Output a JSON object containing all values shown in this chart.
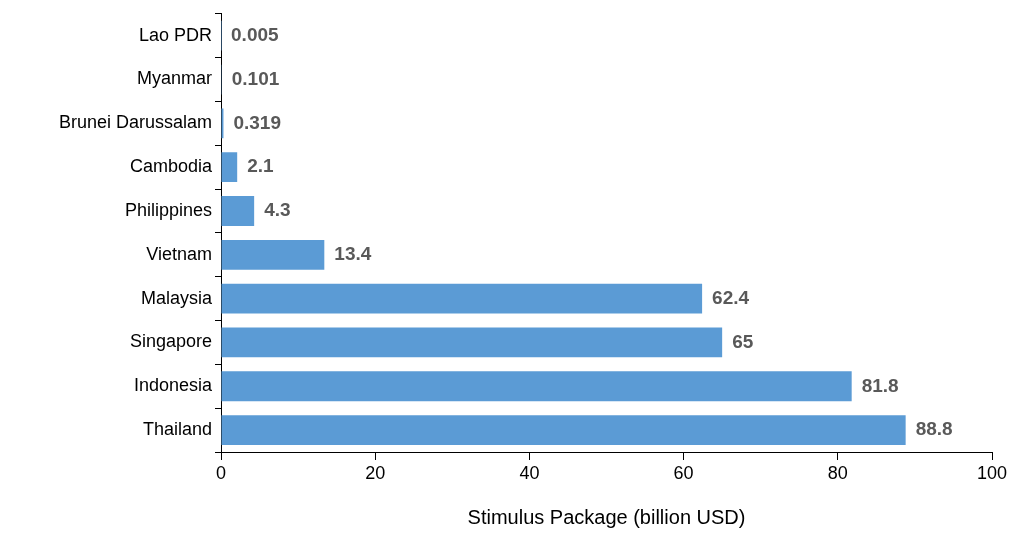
{
  "chart_data": {
    "type": "bar",
    "orientation": "horizontal",
    "xlabel": "Stimulus Package (billion USD)",
    "categories": [
      "Lao PDR",
      "Myanmar",
      "Brunei Darussalam",
      "Cambodia",
      "Philippines",
      "Vietnam",
      "Malaysia",
      "Singapore",
      "Indonesia",
      "Thailand"
    ],
    "values": [
      0.005,
      0.101,
      0.319,
      2.1,
      4.3,
      13.4,
      62.4,
      65,
      81.8,
      88.8
    ],
    "color": "#5b9bd5",
    "xlim": [
      0,
      100
    ],
    "xticks": [
      0,
      20,
      40,
      60,
      80,
      100
    ],
    "grid": false,
    "legend": false,
    "data_labels": true
  }
}
